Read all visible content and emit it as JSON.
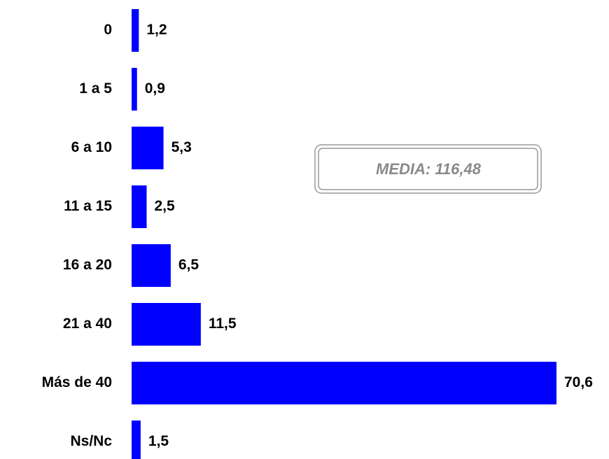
{
  "chart_data": {
    "type": "bar",
    "orientation": "horizontal",
    "categories": [
      "0",
      "1 a 5",
      "6 a 10",
      "11 a 15",
      "16 a 20",
      "21 a 40",
      "Más de 40",
      "Ns/Nc"
    ],
    "values": [
      1.2,
      0.9,
      5.3,
      2.5,
      6.5,
      11.5,
      70.6,
      1.5
    ],
    "value_labels": [
      "1,2",
      "0,9",
      "5,3",
      "2,5",
      "6,5",
      "11,5",
      "70,6",
      "1,5"
    ],
    "color": "#0000ff",
    "annotation": "MEDIA: 116,48"
  }
}
